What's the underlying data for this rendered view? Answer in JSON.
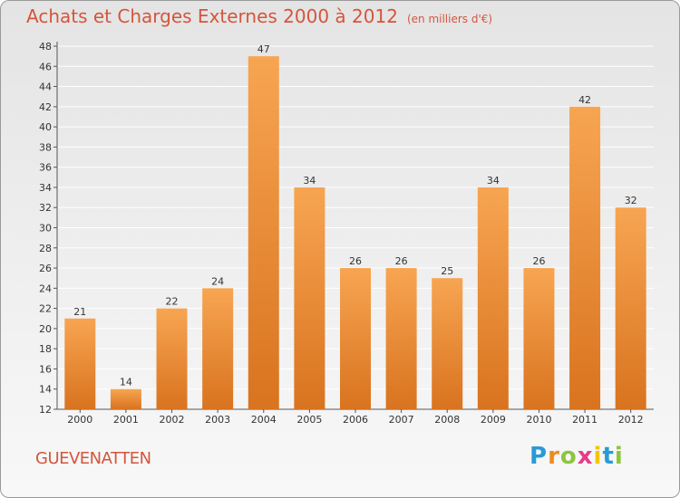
{
  "header": {
    "title": "Achats et Charges Externes 2000 à 2012",
    "unit": "(en milliers d'€)"
  },
  "footer": {
    "city": "GUEVENATTEN",
    "logo_text": "Proxiti"
  },
  "colors": {
    "bar_light": "#f7a552",
    "bar_dark": "#d9731f",
    "title": "#d4553c"
  },
  "chart_data": {
    "type": "bar",
    "title": "Achats et Charges Externes 2000 à 2012",
    "subtitle": "(en milliers d'€)",
    "categories": [
      "2000",
      "2001",
      "2002",
      "2003",
      "2004",
      "2005",
      "2006",
      "2007",
      "2008",
      "2009",
      "2010",
      "2011",
      "2012"
    ],
    "values": [
      21,
      14,
      22,
      24,
      47,
      34,
      26,
      26,
      25,
      34,
      26,
      42,
      32
    ],
    "data_labels": [
      "21",
      "14",
      "22",
      "24",
      "47",
      "34",
      "26",
      "26",
      "25",
      "34",
      "26",
      "42",
      "32"
    ],
    "ylim": [
      12,
      48
    ],
    "yticks": [
      12,
      14,
      16,
      18,
      20,
      22,
      24,
      26,
      28,
      30,
      32,
      34,
      36,
      38,
      40,
      42,
      44,
      46,
      48
    ],
    "grid": true,
    "legend": "none"
  }
}
